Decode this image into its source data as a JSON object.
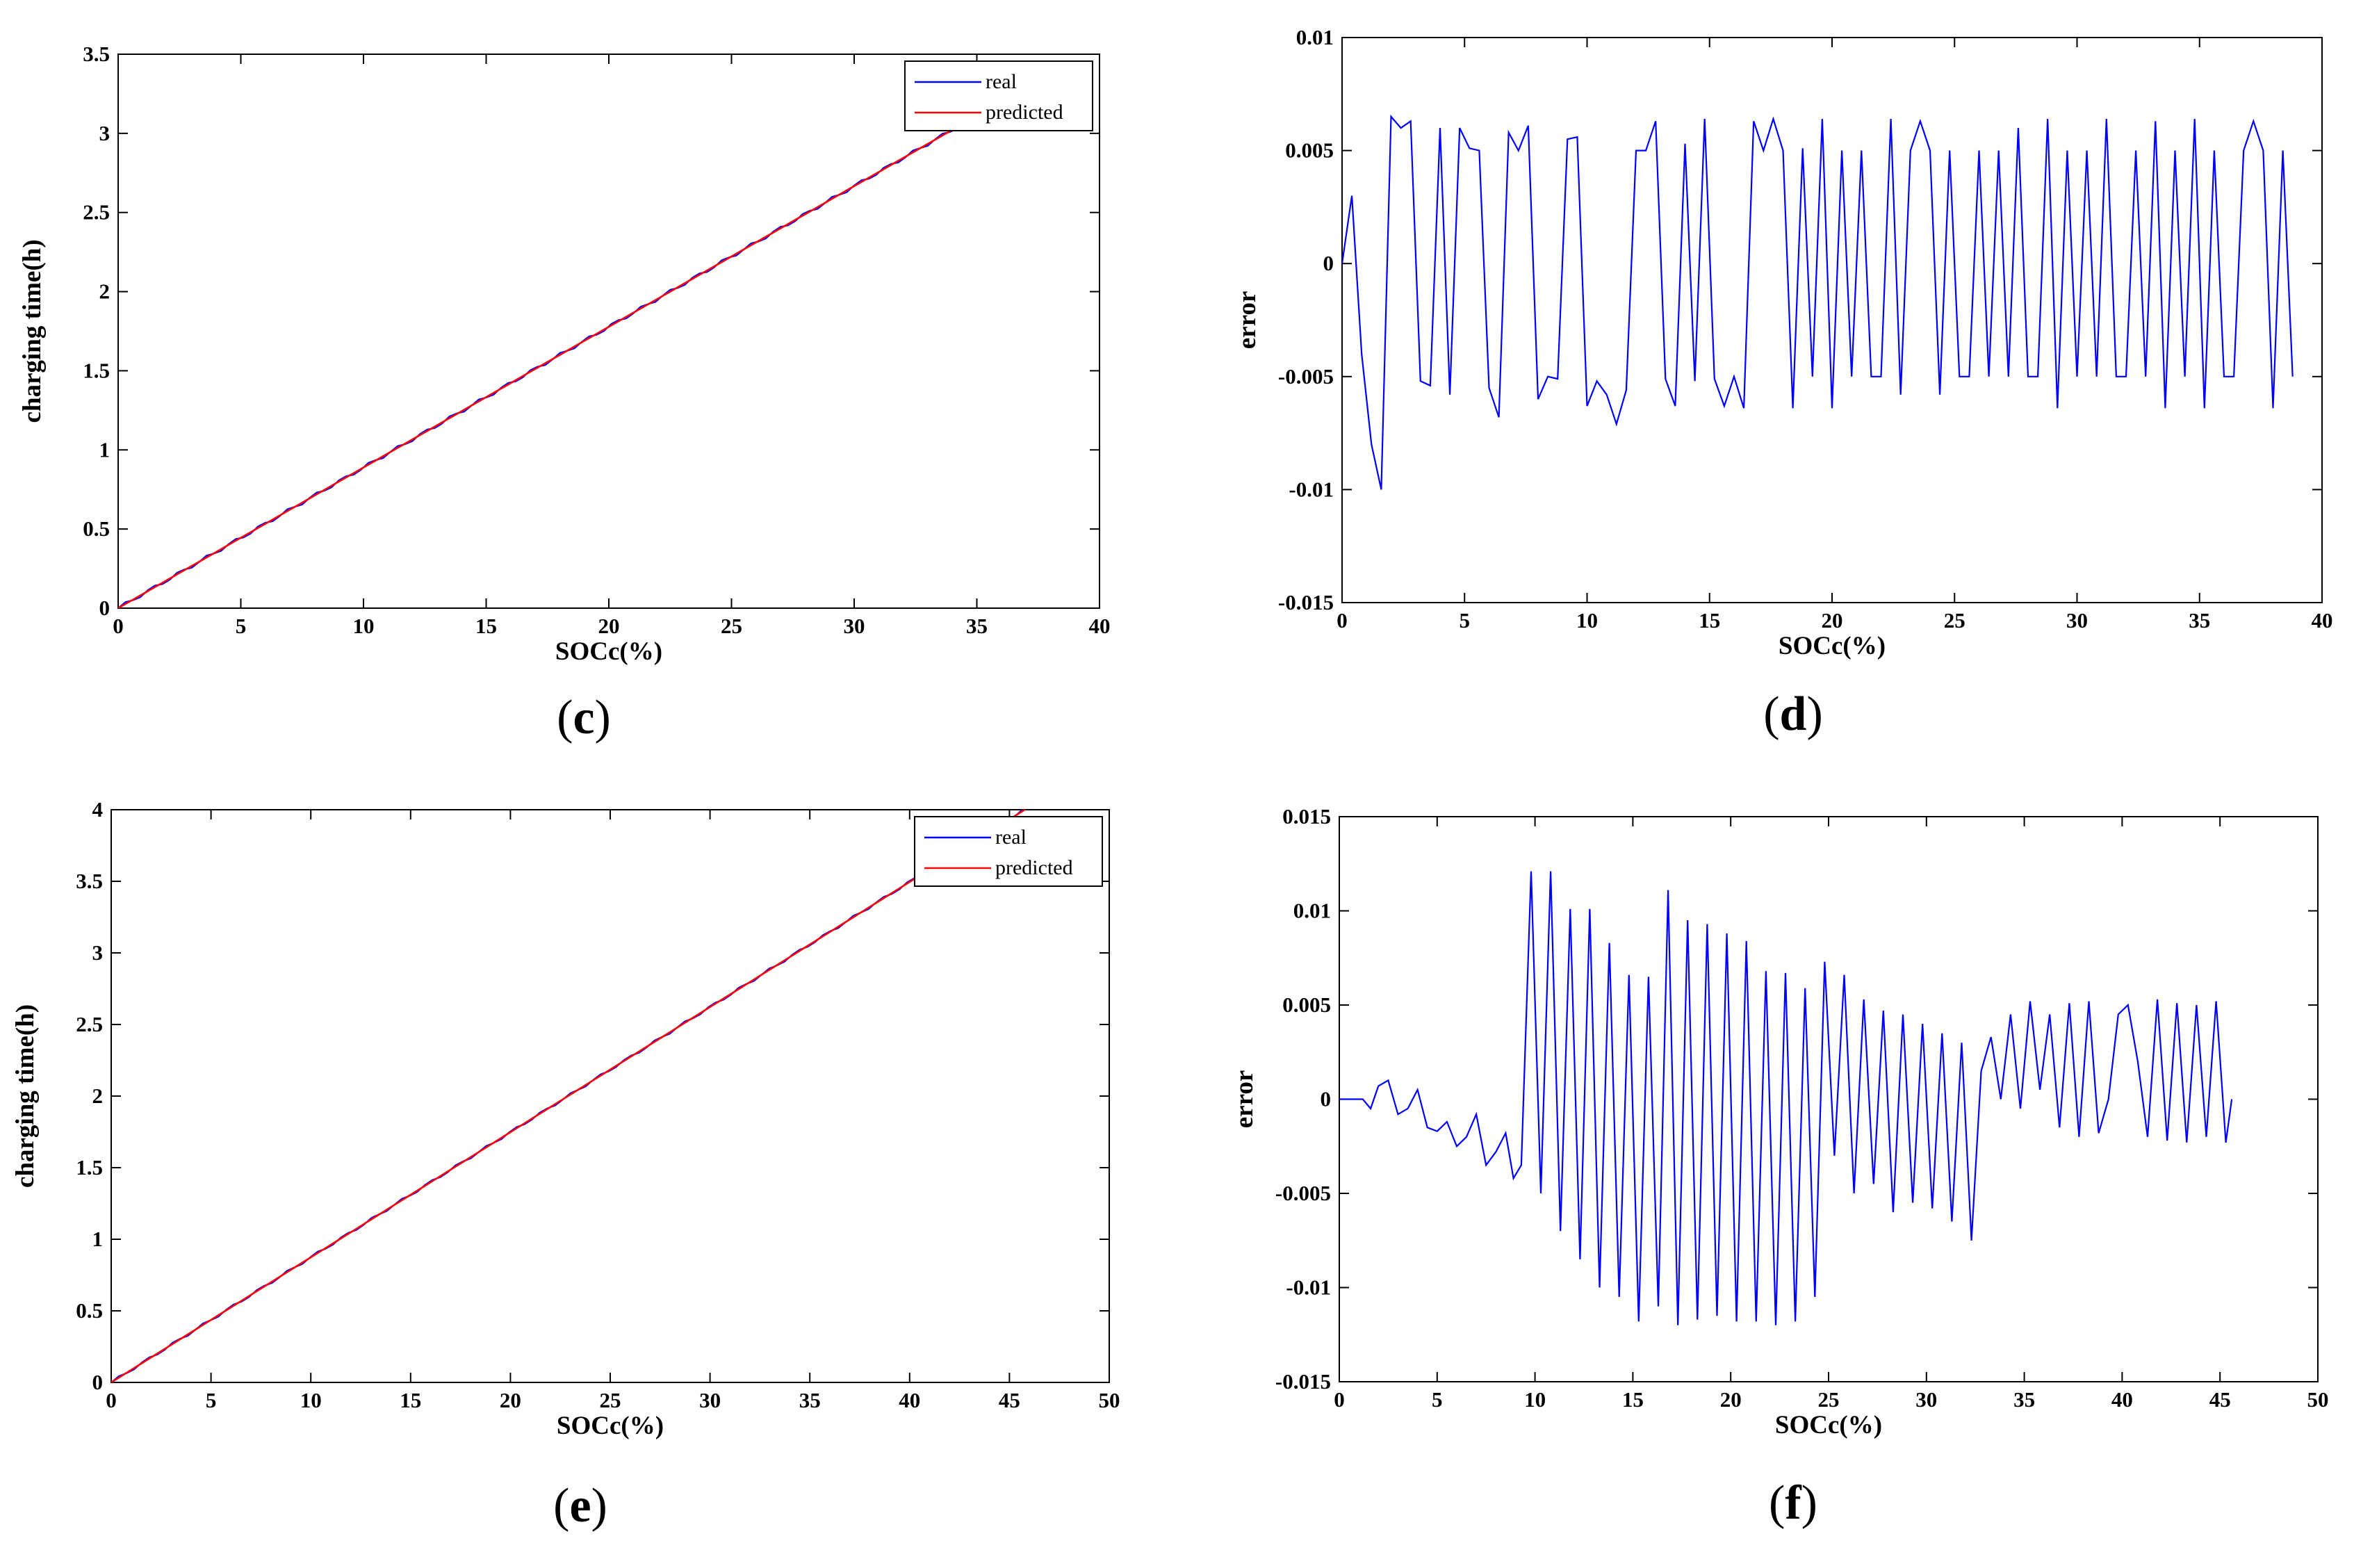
{
  "chart_data": [
    {
      "id": "c",
      "panel_label": "c",
      "type": "line",
      "xlabel": "SOCc(%)",
      "ylabel": "charging time(h)",
      "xlim": [
        0,
        40
      ],
      "ylim": [
        0,
        3.5
      ],
      "xticks": [
        0,
        5,
        10,
        15,
        20,
        25,
        30,
        35,
        40
      ],
      "yticks": [
        0,
        0.5,
        1,
        1.5,
        2,
        2.5,
        3,
        3.5
      ],
      "ytick_labels": [
        "0",
        "0.5",
        "1",
        "1.5",
        "2",
        "2.5",
        "3",
        "3.5"
      ],
      "legend": {
        "placement": "top-right",
        "entries": [
          "real",
          "predicted"
        ]
      },
      "series": [
        {
          "name": "real",
          "color": "#0000ff",
          "x": [
            0,
            36
          ],
          "y": [
            0,
            3.2
          ],
          "wobble": 0.012
        },
        {
          "name": "predicted",
          "color": "#ff0000",
          "x": [
            0,
            36
          ],
          "y": [
            0,
            3.2
          ],
          "wobble": 0
        }
      ]
    },
    {
      "id": "d",
      "panel_label": "d",
      "type": "line",
      "xlabel": "SOCc(%)",
      "ylabel": "error",
      "xlim": [
        0,
        40
      ],
      "ylim": [
        -0.015,
        0.01
      ],
      "xticks": [
        0,
        5,
        10,
        15,
        20,
        25,
        30,
        35,
        40
      ],
      "yticks": [
        -0.015,
        -0.01,
        -0.005,
        0,
        0.005,
        0.01
      ],
      "ytick_labels": [
        "-0.015",
        "-0.01",
        "-0.005",
        "0",
        "0.005",
        "0.01"
      ],
      "series": [
        {
          "name": "error",
          "color": "#0000ff",
          "x": [
            0,
            0.4,
            0.8,
            1.2,
            1.6,
            2.0,
            2.4,
            2.8,
            3.2,
            3.6,
            4.0,
            4.4,
            4.8,
            5.2,
            5.6,
            6.0,
            6.4,
            6.8,
            7.2,
            7.6,
            8.0,
            8.4,
            8.8,
            9.2,
            9.6,
            10.0,
            10.4,
            10.8,
            11.2,
            11.6,
            12.0,
            12.4,
            12.8,
            13.2,
            13.6,
            14.0,
            14.4,
            14.8,
            15.2,
            15.6,
            16.0,
            16.4,
            16.8,
            17.2,
            17.6,
            18.0,
            18.4,
            18.8,
            19.2,
            19.6,
            20.0,
            20.4,
            20.8,
            21.2,
            21.6,
            22.0,
            22.4,
            22.8,
            23.2,
            23.6,
            24.0,
            24.4,
            24.8,
            25.2,
            25.6,
            26.0,
            26.4,
            26.8,
            27.2,
            27.6,
            28.0,
            28.4,
            28.8,
            29.2,
            29.6,
            30.0,
            30.4,
            30.8,
            31.2,
            31.6,
            32.0,
            32.4,
            32.8,
            33.2,
            33.6,
            34.0,
            34.4,
            34.8,
            35.2,
            35.6,
            36.0,
            36.4,
            36.8,
            37.2,
            37.6,
            38.0,
            38.4,
            38.8
          ],
          "y": [
            0,
            0.003,
            -0.004,
            -0.008,
            -0.01,
            0.0065,
            0.006,
            0.0063,
            -0.0052,
            -0.0054,
            0.006,
            -0.0058,
            0.006,
            0.0051,
            0.005,
            -0.0055,
            -0.0068,
            0.0058,
            0.005,
            0.0061,
            -0.006,
            -0.005,
            -0.0051,
            0.0055,
            0.0056,
            -0.0063,
            -0.0052,
            -0.0058,
            -0.0071,
            -0.0056,
            0.005,
            0.005,
            0.0063,
            -0.0051,
            -0.0063,
            0.0053,
            -0.0052,
            0.0064,
            -0.0051,
            -0.0063,
            -0.005,
            -0.0064,
            0.0063,
            0.005,
            0.0064,
            0.005,
            -0.0064,
            0.0051,
            -0.005,
            0.0064,
            -0.0064,
            0.005,
            -0.005,
            0.005,
            -0.005,
            -0.005,
            0.0064,
            -0.0058,
            0.005,
            0.0063,
            0.005,
            -0.0058,
            0.005,
            -0.005,
            -0.005,
            0.005,
            -0.005,
            0.005,
            -0.005,
            0.006,
            -0.005,
            -0.005,
            0.0064,
            -0.0064,
            0.005,
            -0.005,
            0.005,
            -0.005,
            0.0064,
            -0.005,
            -0.005,
            0.005,
            -0.005,
            0.0063,
            -0.0064,
            0.005,
            -0.005,
            0.0064,
            -0.0064,
            0.005,
            -0.005,
            -0.005,
            0.005,
            0.0063,
            0.005,
            -0.0064,
            0.005,
            -0.005
          ],
          "note_last": "continues to x=38.8"
        }
      ]
    },
    {
      "id": "e",
      "panel_label": "e",
      "type": "line",
      "xlabel": "SOCc(%)",
      "ylabel": "charging time(h)",
      "xlim": [
        0,
        50
      ],
      "ylim": [
        0,
        4
      ],
      "xticks": [
        0,
        5,
        10,
        15,
        20,
        25,
        30,
        35,
        40,
        45,
        50
      ],
      "yticks": [
        0,
        0.5,
        1,
        1.5,
        2,
        2.5,
        3,
        3.5,
        4
      ],
      "ytick_labels": [
        "0",
        "0.5",
        "1",
        "1.5",
        "2",
        "2.5",
        "3",
        "3.5",
        "4"
      ],
      "legend": {
        "placement": "top-right",
        "entries": [
          "real",
          "predicted"
        ]
      },
      "series": [
        {
          "name": "real",
          "color": "#0000ff",
          "x": [
            0,
            46
          ],
          "y": [
            0,
            4.02
          ],
          "wobble": 0.01
        },
        {
          "name": "predicted",
          "color": "#ff0000",
          "x": [
            0,
            46
          ],
          "y": [
            0,
            4.02
          ],
          "wobble": 0
        }
      ]
    },
    {
      "id": "f",
      "panel_label": "f",
      "type": "line",
      "xlabel": "SOCc(%)",
      "ylabel": "error",
      "xlim": [
        0,
        50
      ],
      "ylim": [
        -0.015,
        0.015
      ],
      "xticks": [
        0,
        5,
        10,
        15,
        20,
        25,
        30,
        35,
        40,
        45,
        50
      ],
      "yticks": [
        -0.015,
        -0.01,
        -0.005,
        0,
        0.005,
        0.01,
        0.015
      ],
      "ytick_labels": [
        "-0.015",
        "-0.01",
        "-0.005",
        "0",
        "0.005",
        "0.01",
        "0.015"
      ],
      "series": [
        {
          "name": "error",
          "color": "#0000ff",
          "x": [
            0,
            1.2,
            1.6,
            2.0,
            2.5,
            3.0,
            3.5,
            4.0,
            4.5,
            5.0,
            5.5,
            6.0,
            6.5,
            7.0,
            7.5,
            8.0,
            8.5,
            8.9,
            9.3,
            9.8,
            10.3,
            10.8,
            11.3,
            11.8,
            12.3,
            12.8,
            13.3,
            13.8,
            14.3,
            14.8,
            15.3,
            15.8,
            16.3,
            16.8,
            17.3,
            17.8,
            18.3,
            18.8,
            19.3,
            19.8,
            20.3,
            20.8,
            21.3,
            21.8,
            22.3,
            22.8,
            23.3,
            23.8,
            24.3,
            24.8,
            25.3,
            25.8,
            26.3,
            26.8,
            27.3,
            27.8,
            28.3,
            28.8,
            29.3,
            29.8,
            30.3,
            30.8,
            31.3,
            31.8,
            32.3,
            32.8,
            33.3,
            33.8,
            34.3,
            34.8,
            35.3,
            35.8,
            36.3,
            36.8,
            37.3,
            37.8,
            38.3,
            38.8,
            39.3,
            39.8,
            40.3,
            40.8,
            41.3,
            41.8,
            42.3,
            42.8,
            43.3,
            43.8,
            44.3,
            44.8,
            45.3,
            45.6
          ],
          "y": [
            0,
            0,
            -0.0005,
            0.0007,
            0.001,
            -0.0008,
            -0.0005,
            0.0005,
            -0.0015,
            -0.0017,
            -0.0012,
            -0.0025,
            -0.002,
            -0.0008,
            -0.0035,
            -0.0028,
            -0.0018,
            -0.0042,
            -0.0035,
            0.0121,
            -0.005,
            0.0121,
            -0.007,
            0.0101,
            -0.0085,
            0.0101,
            -0.01,
            0.0083,
            -0.0105,
            0.0066,
            -0.0118,
            0.0065,
            -0.011,
            0.0111,
            -0.012,
            0.0095,
            -0.0117,
            0.0093,
            -0.0115,
            0.0088,
            -0.0118,
            0.0084,
            -0.0118,
            0.0068,
            -0.012,
            0.0067,
            -0.0118,
            0.0059,
            -0.0105,
            0.0073,
            -0.003,
            0.0066,
            -0.005,
            0.0053,
            -0.0045,
            0.0047,
            -0.006,
            0.0045,
            -0.0055,
            0.004,
            -0.0058,
            0.0035,
            -0.0065,
            0.003,
            -0.0075,
            0.0015,
            0.0033,
            0,
            0.0045,
            -0.0005,
            0.0052,
            0.0005,
            0.0045,
            -0.0015,
            0.0051,
            -0.002,
            0.0052,
            -0.0018,
            0,
            0.0045,
            0.005,
            0.002,
            -0.002,
            0.0053,
            -0.0022,
            0.0051,
            -0.0023,
            0.005,
            -0.002,
            0.0052,
            -0.0023,
            0
          ]
        }
      ]
    }
  ]
}
